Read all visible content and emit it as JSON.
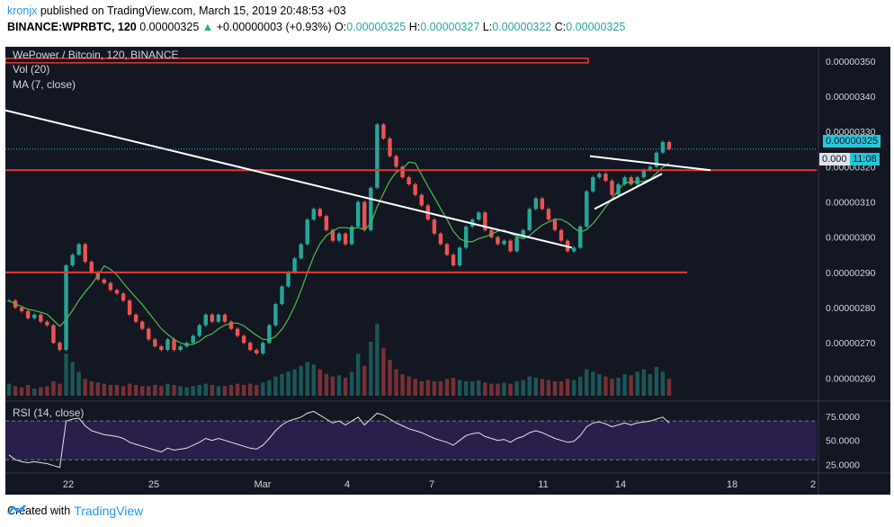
{
  "header": {
    "author": "kronjx",
    "published": "published on TradingView.com, March 15, 2019 20:48:53 +03",
    "symbol": "BINANCE:WPRBTC, 120",
    "last": "0.00000325",
    "change": "+0.00000003 (+0.93%)",
    "o_label": "O:",
    "o": "0.00000325",
    "h_label": "H:",
    "h": "0.00000327",
    "l_label": "L:",
    "l": "0.00000322",
    "c_label": "C:",
    "c": "0.00000325"
  },
  "legend": {
    "title": "WePower / Bitcoin, 120, BINANCE",
    "vol": "Vol (20)",
    "ma": "MA (7, close)",
    "rsi": "RSI (14, close)"
  },
  "price_axis": {
    "ticks": [
      "0.00000350",
      "0.00000340",
      "0.00000330",
      "0.00000320",
      "0.00000310",
      "0.00000300",
      "0.00000290",
      "0.00000280",
      "0.00000270",
      "0.00000260"
    ],
    "current_price": "0.00000325",
    "countdown": "11:08",
    "partial_label": "0.000"
  },
  "rsi_axis": {
    "ticks": [
      "75.0000",
      "50.0000",
      "25.0000"
    ]
  },
  "time_axis": {
    "ticks": [
      "22",
      "25",
      "Mar",
      "4",
      "7",
      "11",
      "14",
      "18",
      "2"
    ]
  },
  "footer": {
    "created_with": "Created with",
    "brand": "TradingView"
  },
  "colors": {
    "bg": "#131722",
    "up": "#26a69a",
    "down": "#ef5350",
    "ma": "#4caf50",
    "support": "#e53935",
    "trend": "#ffffff",
    "rsi_band": "#2a1f4a",
    "current": "#26c6da"
  },
  "chart_data": {
    "type": "candlestick",
    "title": "WePower / Bitcoin, 120, BINANCE",
    "ylim": [
      2.55e-06,
      3.52e-06
    ],
    "rsi_ylim": [
      20,
      85
    ],
    "horizontal_levels": [
      3.5e-06,
      3.19e-06,
      2.9e-06
    ],
    "closes": [
      2.82e-06,
      2.8e-06,
      2.79e-06,
      2.77e-06,
      2.78e-06,
      2.76e-06,
      2.75e-06,
      2.7e-06,
      2.68e-06,
      2.92e-06,
      2.95e-06,
      2.98e-06,
      2.93e-06,
      2.9e-06,
      2.88e-06,
      2.87e-06,
      2.85e-06,
      2.84e-06,
      2.82e-06,
      2.78e-06,
      2.76e-06,
      2.74e-06,
      2.71e-06,
      2.69e-06,
      2.68e-06,
      2.71e-06,
      2.68e-06,
      2.69e-06,
      2.7e-06,
      2.72e-06,
      2.75e-06,
      2.78e-06,
      2.76e-06,
      2.78e-06,
      2.76e-06,
      2.74e-06,
      2.72e-06,
      2.7e-06,
      2.68e-06,
      2.67e-06,
      2.7e-06,
      2.75e-06,
      2.81e-06,
      2.86e-06,
      2.9e-06,
      2.94e-06,
      2.98e-06,
      3.05e-06,
      3.08e-06,
      3.06e-06,
      3.02e-06,
      2.99e-06,
      3.01e-06,
      2.98e-06,
      3.03e-06,
      3.1e-06,
      3.02e-06,
      3.14e-06,
      3.32e-06,
      3.28e-06,
      3.23e-06,
      3.2e-06,
      3.17e-06,
      3.15e-06,
      3.12e-06,
      3.09e-06,
      3.05e-06,
      3.01e-06,
      2.98e-06,
      2.95e-06,
      2.92e-06,
      2.97e-06,
      3.03e-06,
      3.05e-06,
      3.07e-06,
      3.02e-06,
      3e-06,
      2.98e-06,
      2.99e-06,
      2.96e-06,
      3e-06,
      3.02e-06,
      3.08e-06,
      3.11e-06,
      3.08e-06,
      3.05e-06,
      3.02e-06,
      2.99e-06,
      2.96e-06,
      2.97e-06,
      3.03e-06,
      3.13e-06,
      3.17e-06,
      3.18e-06,
      3.16e-06,
      3.12e-06,
      3.15e-06,
      3.17e-06,
      3.15e-06,
      3.17e-06,
      3.19e-06,
      3.2e-06,
      3.24e-06,
      3.27e-06,
      3.25e-06
    ],
    "rsi": [
      35,
      30,
      28,
      27,
      28,
      27,
      26,
      24,
      22,
      70,
      72,
      73,
      65,
      60,
      58,
      56,
      55,
      54,
      52,
      48,
      46,
      44,
      42,
      40,
      38,
      42,
      40,
      41,
      42,
      45,
      48,
      52,
      50,
      52,
      50,
      48,
      46,
      44,
      42,
      41,
      45,
      52,
      60,
      66,
      70,
      72,
      74,
      78,
      80,
      76,
      72,
      68,
      70,
      66,
      70,
      74,
      66,
      72,
      78,
      76,
      72,
      68,
      65,
      62,
      60,
      58,
      55,
      52,
      50,
      48,
      45,
      50,
      55,
      57,
      58,
      54,
      52,
      50,
      51,
      48,
      52,
      54,
      58,
      60,
      58,
      55,
      52,
      50,
      48,
      49,
      55,
      64,
      68,
      69,
      67,
      64,
      66,
      68,
      66,
      68,
      69,
      70,
      72,
      74,
      68
    ],
    "volume": [
      10,
      8,
      7,
      9,
      6,
      7,
      8,
      12,
      10,
      35,
      28,
      20,
      14,
      12,
      11,
      10,
      9,
      9,
      8,
      10,
      9,
      8,
      8,
      9,
      8,
      10,
      9,
      8,
      7,
      8,
      9,
      10,
      9,
      8,
      8,
      9,
      10,
      9,
      10,
      9,
      11,
      13,
      16,
      18,
      20,
      22,
      25,
      28,
      26,
      22,
      18,
      16,
      17,
      15,
      20,
      35,
      25,
      45,
      60,
      40,
      30,
      22,
      18,
      16,
      14,
      12,
      13,
      12,
      12,
      14,
      15,
      13,
      12,
      12,
      13,
      11,
      10,
      10,
      11,
      10,
      12,
      13,
      16,
      15,
      14,
      13,
      12,
      12,
      14,
      13,
      16,
      22,
      20,
      18,
      16,
      14,
      15,
      18,
      17,
      20,
      22,
      18,
      24,
      20,
      14
    ],
    "trendlines": [
      {
        "from": [
          "Feb 20",
          3.36e-06
        ],
        "to": [
          "Mar 12",
          2.97e-06
        ]
      },
      {
        "from": [
          "Mar 12",
          3.23e-06
        ],
        "to": [
          "Mar 17",
          3.19e-06
        ]
      },
      {
        "from": [
          "Mar 12",
          3.08e-06
        ],
        "to": [
          "Mar 16",
          3.18e-06
        ]
      }
    ]
  }
}
